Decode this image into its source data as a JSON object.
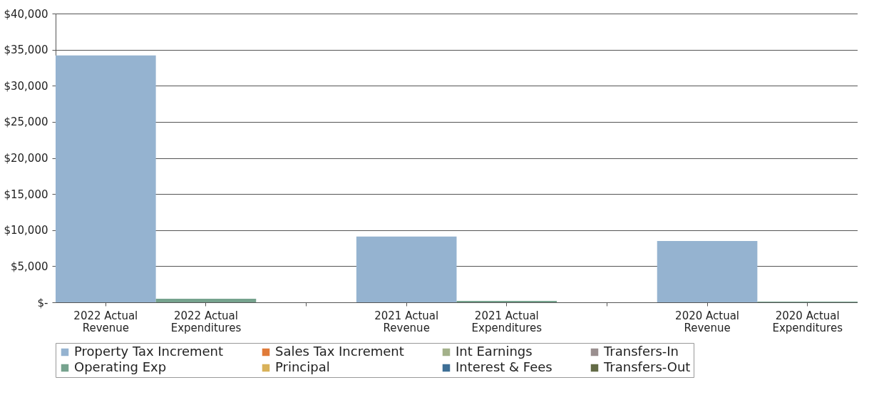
{
  "chart_data": {
    "type": "bar",
    "stacked": true,
    "categories": [
      "2022 Actual Revenue",
      "2022 Actual Expenditures",
      null,
      "2021 Actual Revenue",
      "2021 Actual Expenditures",
      null,
      "2020 Actual Revenue",
      "2020 Actual Expenditures"
    ],
    "series": [
      {
        "name": "Property Tax Increment",
        "color": "#95b3d0",
        "values": [
          34200,
          null,
          null,
          9100,
          null,
          null,
          8500,
          null
        ]
      },
      {
        "name": "Sales Tax Increment",
        "color": "#e07b39",
        "values": [
          null,
          null,
          null,
          null,
          null,
          null,
          null,
          null
        ]
      },
      {
        "name": "Int Earnings",
        "color": "#a3b18a",
        "values": [
          null,
          null,
          null,
          null,
          null,
          null,
          null,
          null
        ]
      },
      {
        "name": "Transfers-In",
        "color": "#9a8f8f",
        "values": [
          null,
          null,
          null,
          null,
          null,
          null,
          null,
          null
        ]
      },
      {
        "name": "Operating Exp",
        "color": "#76a38e",
        "values": [
          null,
          500,
          null,
          null,
          200,
          null,
          null,
          100
        ]
      },
      {
        "name": "Principal",
        "color": "#d9b25a",
        "values": [
          null,
          null,
          null,
          null,
          null,
          null,
          null,
          null
        ]
      },
      {
        "name": "Interest & Fees",
        "color": "#3e6f96",
        "values": [
          null,
          null,
          null,
          null,
          null,
          null,
          null,
          null
        ]
      },
      {
        "name": "Transfers-Out",
        "color": "#636b46",
        "values": [
          null,
          null,
          null,
          null,
          null,
          null,
          null,
          null
        ]
      }
    ],
    "ylim": [
      0,
      40000
    ],
    "yticks": [
      {
        "value": 0,
        "label": "$-"
      },
      {
        "value": 5000,
        "label": "$5,000"
      },
      {
        "value": 10000,
        "label": "$10,000"
      },
      {
        "value": 15000,
        "label": "$15,000"
      },
      {
        "value": 20000,
        "label": "$20,000"
      },
      {
        "value": 25000,
        "label": "$25,000"
      },
      {
        "value": 30000,
        "label": "$30,000"
      },
      {
        "value": 35000,
        "label": "$35,000"
      },
      {
        "value": 40000,
        "label": "$40,000"
      }
    ],
    "grid": "y",
    "legend": "bottom"
  }
}
